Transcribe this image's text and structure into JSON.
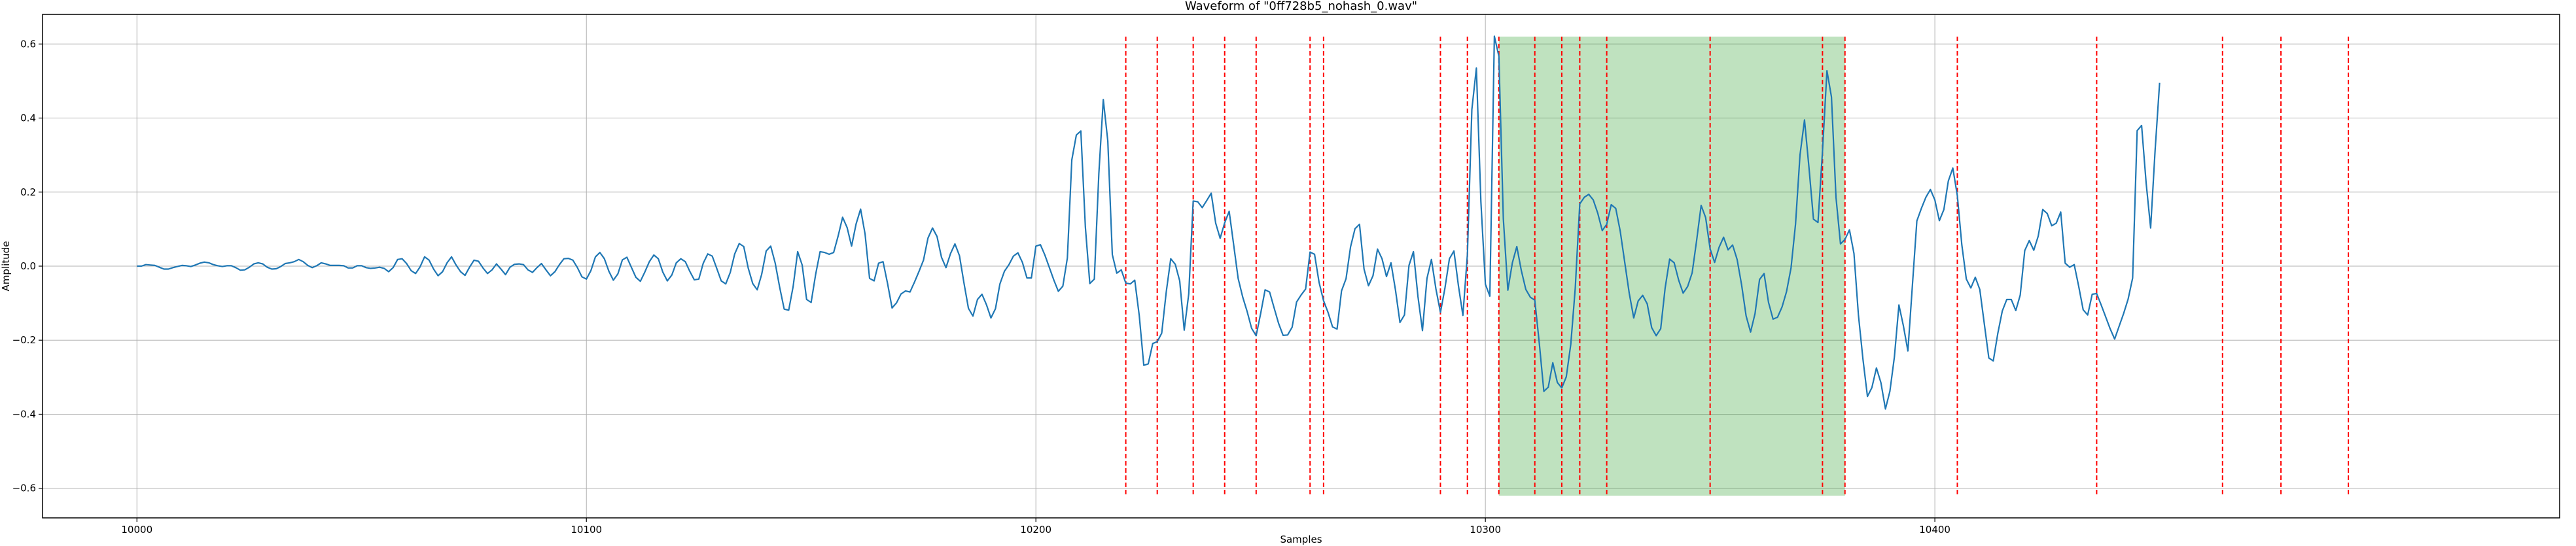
{
  "chart_data": {
    "type": "line",
    "title": "Waveform of \"0ff728b5_nohash_0.wav\"",
    "xlabel": "Samples",
    "ylabel": "Amplitude",
    "xlim": [
      9979,
      10539
    ],
    "ylim": [
      -0.68,
      0.68
    ],
    "xticks": [
      10000,
      10100,
      10200,
      10300,
      10400
    ],
    "yticks": [
      -0.6,
      -0.4,
      -0.2,
      0.0,
      0.2,
      0.4,
      0.6
    ],
    "xtick_labels": [
      "10000",
      "10100",
      "10200",
      "10300",
      "10400"
    ],
    "ytick_labels": [
      "−0.6",
      "−0.4",
      "−0.2",
      "0.0",
      "0.2",
      "0.4",
      "0.6"
    ],
    "grid": true,
    "line_color": "#1f77b4",
    "marker_color": "#ff0000",
    "region_color": "#2ca02c",
    "series": [
      {
        "x_start": 10000,
        "x_step": 1,
        "values": [
          0.0,
          0.0,
          0.004,
          0.003,
          0.002,
          -0.003,
          -0.008,
          -0.008,
          -0.004,
          -0.001,
          0.002,
          0.001,
          -0.001,
          0.003,
          0.008,
          0.011,
          0.009,
          0.004,
          0.001,
          -0.001,
          0.001,
          0.001,
          -0.004,
          -0.011,
          -0.01,
          -0.003,
          0.006,
          0.009,
          0.006,
          -0.003,
          -0.008,
          -0.007,
          -0.001,
          0.007,
          0.009,
          0.012,
          0.018,
          0.012,
          0.002,
          -0.004,
          0.001,
          0.009,
          0.006,
          0.002,
          0.002,
          0.002,
          0.001,
          -0.005,
          -0.005,
          0.001,
          0.001,
          -0.004,
          -0.006,
          -0.005,
          -0.003,
          -0.006,
          -0.015,
          -0.004,
          0.018,
          0.02,
          0.007,
          -0.012,
          -0.02,
          -0.002,
          0.025,
          0.016,
          -0.008,
          -0.026,
          -0.015,
          0.009,
          0.025,
          0.003,
          -0.015,
          -0.025,
          -0.003,
          0.016,
          0.013,
          -0.005,
          -0.02,
          -0.01,
          0.006,
          -0.008,
          -0.023,
          -0.003,
          0.005,
          0.006,
          0.004,
          -0.01,
          -0.017,
          -0.004,
          0.007,
          -0.01,
          -0.026,
          -0.015,
          0.004,
          0.02,
          0.021,
          0.016,
          -0.004,
          -0.029,
          -0.035,
          -0.012,
          0.025,
          0.037,
          0.02,
          -0.014,
          -0.038,
          -0.021,
          0.017,
          0.024,
          -0.003,
          -0.03,
          -0.041,
          -0.016,
          0.012,
          0.03,
          0.02,
          -0.016,
          -0.04,
          -0.024,
          0.009,
          0.02,
          0.012,
          -0.014,
          -0.037,
          -0.035,
          0.008,
          0.033,
          0.027,
          -0.006,
          -0.04,
          -0.048,
          -0.017,
          0.033,
          0.061,
          0.053,
          -0.005,
          -0.047,
          -0.064,
          -0.022,
          0.041,
          0.054,
          0.008,
          -0.057,
          -0.116,
          -0.119,
          -0.055,
          0.039,
          0.003,
          -0.09,
          -0.098,
          -0.022,
          0.039,
          0.037,
          0.032,
          0.037,
          0.081,
          0.132,
          0.104,
          0.054,
          0.114,
          0.154,
          0.087,
          -0.033,
          -0.04,
          0.008,
          0.012,
          -0.047,
          -0.113,
          -0.099,
          -0.075,
          -0.067,
          -0.07,
          -0.043,
          -0.014,
          0.016,
          0.076,
          0.103,
          0.08,
          0.024,
          -0.004,
          0.034,
          0.06,
          0.028,
          -0.046,
          -0.114,
          -0.135,
          -0.09,
          -0.076,
          -0.104,
          -0.14,
          -0.115,
          -0.048,
          -0.014,
          0.004,
          0.027,
          0.036,
          0.01,
          -0.032,
          -0.032,
          0.054,
          0.058,
          0.03,
          -0.004,
          -0.038,
          -0.068,
          -0.054,
          0.022,
          0.287,
          0.354,
          0.365,
          0.106,
          -0.047,
          -0.035,
          0.25,
          0.45,
          0.338,
          0.031,
          -0.019,
          -0.01,
          -0.046,
          -0.048,
          -0.038,
          -0.134,
          -0.268,
          -0.264,
          -0.209,
          -0.204,
          -0.181,
          -0.07,
          0.02,
          0.005,
          -0.04,
          -0.173,
          -0.075,
          0.176,
          0.174,
          0.158,
          0.177,
          0.197,
          0.116,
          0.075,
          0.117,
          0.148,
          0.057,
          -0.033,
          -0.083,
          -0.123,
          -0.168,
          -0.188,
          -0.128,
          -0.064,
          -0.07,
          -0.113,
          -0.155,
          -0.187,
          -0.186,
          -0.165,
          -0.097,
          -0.078,
          -0.062,
          0.038,
          0.032,
          -0.044,
          -0.093,
          -0.125,
          -0.164,
          -0.17,
          -0.067,
          -0.034,
          0.052,
          0.101,
          0.113,
          -0.008,
          -0.053,
          -0.026,
          0.046,
          0.02,
          -0.028,
          0.009,
          -0.065,
          -0.152,
          -0.132,
          0.002,
          0.039,
          -0.082,
          -0.174,
          -0.033,
          0.018,
          -0.062,
          -0.125,
          -0.06,
          0.02,
          0.041,
          -0.052,
          -0.133,
          0.032,
          0.423,
          0.535,
          0.174,
          -0.049,
          -0.081,
          0.621,
          0.567,
          0.128,
          -0.065,
          0.009,
          0.053,
          -0.012,
          -0.063,
          -0.084,
          -0.092,
          -0.209,
          -0.338,
          -0.327,
          -0.261,
          -0.314,
          -0.329,
          -0.299,
          -0.211,
          -0.06,
          0.168,
          0.186,
          0.194,
          0.179,
          0.143,
          0.096,
          0.113,
          0.166,
          0.156,
          0.095,
          0.011,
          -0.073,
          -0.14,
          -0.094,
          -0.079,
          -0.102,
          -0.166,
          -0.188,
          -0.169,
          -0.059,
          0.019,
          0.009,
          -0.038,
          -0.073,
          -0.055,
          -0.018,
          0.069,
          0.164,
          0.131,
          0.047,
          0.01,
          0.051,
          0.078,
          0.044,
          0.057,
          0.018,
          -0.05,
          -0.134,
          -0.178,
          -0.128,
          -0.036,
          -0.02,
          -0.098,
          -0.143,
          -0.138,
          -0.11,
          -0.069,
          -0.005,
          0.114,
          0.3,
          0.395,
          0.265,
          0.127,
          0.118,
          0.311,
          0.528,
          0.457,
          0.186,
          0.06,
          0.072,
          0.098,
          0.034,
          -0.132,
          -0.251,
          -0.352,
          -0.328,
          -0.275,
          -0.315,
          -0.386,
          -0.338,
          -0.245,
          -0.105,
          -0.161,
          -0.229,
          -0.052,
          0.122,
          0.156,
          0.186,
          0.207,
          0.179,
          0.123,
          0.153,
          0.23,
          0.265,
          0.19,
          0.058,
          -0.035,
          -0.059,
          -0.03,
          -0.063,
          -0.156,
          -0.248,
          -0.256,
          -0.182,
          -0.121,
          -0.09,
          -0.09,
          -0.12,
          -0.078,
          0.042,
          0.069,
          0.043,
          0.081,
          0.153,
          0.142,
          0.109,
          0.116,
          0.146,
          0.008,
          -0.003,
          0.004,
          -0.054,
          -0.118,
          -0.132,
          -0.076,
          -0.074,
          -0.105,
          -0.137,
          -0.169,
          -0.197,
          -0.162,
          -0.128,
          -0.089,
          -0.032,
          0.366,
          0.38,
          0.225,
          0.103,
          0.312,
          0.495
        ]
      }
    ],
    "highlight_region": [
      10303,
      10380
    ],
    "vertical_markers": [
      10220,
      10227,
      10235,
      10242,
      10249,
      10261,
      10264,
      10290,
      10296,
      10303,
      10311,
      10317,
      10321,
      10327,
      10350,
      10375,
      10380,
      10405,
      10436,
      10464,
      10477,
      10492
    ]
  }
}
